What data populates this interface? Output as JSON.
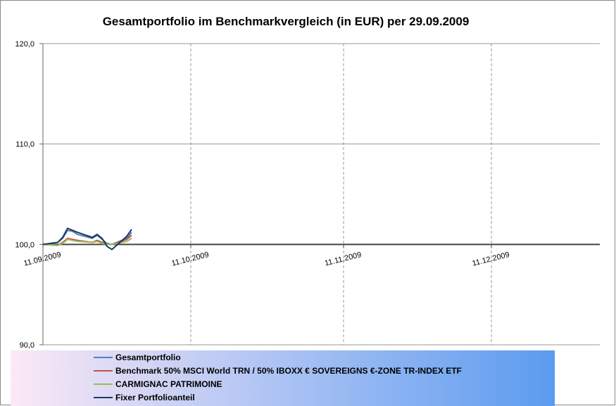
{
  "chart_data": {
    "type": "line",
    "title": "Gesamtportfolio  im Benchmarkvergleich (in EUR) per 29.09.2009",
    "x": [
      "2009-09-11",
      "2009-09-14",
      "2009-09-15",
      "2009-09-16",
      "2009-09-17",
      "2009-09-18",
      "2009-09-21",
      "2009-09-22",
      "2009-09-23",
      "2009-09-24",
      "2009-09-25",
      "2009-09-28",
      "2009-09-29"
    ],
    "series": [
      {
        "name": "Gesamtportfolio",
        "color": "#4f81bd",
        "values": [
          100,
          100.2,
          100.6,
          101.4,
          101.3,
          101.0,
          100.6,
          100.9,
          100.5,
          100.1,
          100.0,
          100.6,
          101.2
        ]
      },
      {
        "name": "Benchmark 50% MSCI World TRN / 50% IBOXX € SOVEREIGNS €-ZONE TR-INDEX ETF",
        "color": "#c0504d",
        "values": [
          100,
          99.9,
          100.2,
          100.6,
          100.5,
          100.4,
          100.2,
          100.4,
          100.2,
          100.0,
          100.0,
          100.5,
          100.9
        ]
      },
      {
        "name": "CARMIGNAC PATRIMOINE",
        "color": "#9bbb59",
        "values": [
          100,
          99.9,
          100.1,
          100.5,
          100.4,
          100.3,
          100.2,
          100.3,
          100.1,
          100.0,
          100.0,
          100.3,
          100.6
        ]
      },
      {
        "name": "Fixer Portfolioanteil",
        "color": "#1f3864",
        "values": [
          100,
          100.2,
          100.7,
          101.6,
          101.4,
          101.2,
          100.7,
          101.0,
          100.6,
          99.8,
          99.5,
          100.8,
          101.5
        ]
      }
    ],
    "xlim": [
      "2009-09-11",
      "2010-01-02"
    ],
    "xticks": [
      {
        "value": "2009-09-11",
        "label": "11.09.2009"
      },
      {
        "value": "2009-10-11",
        "label": "11.10.2009"
      },
      {
        "value": "2009-11-11",
        "label": "11.11.2009"
      },
      {
        "value": "2009-12-11",
        "label": "11.12.2009"
      }
    ],
    "ylim": [
      90,
      120
    ],
    "yticks": [
      {
        "value": 90,
        "label": "90,0"
      },
      {
        "value": 100,
        "label": "100,0"
      },
      {
        "value": 110,
        "label": "110,0"
      },
      {
        "value": 120,
        "label": "120,0"
      }
    ],
    "x_axis_crosses": 100,
    "grid": true,
    "legend": "bottom"
  }
}
